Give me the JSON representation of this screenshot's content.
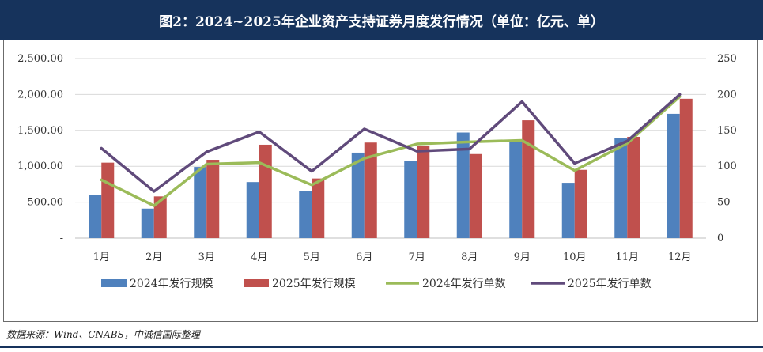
{
  "title": "图2：2024~2025年企业资产支持证券月度发行情况（单位：亿元、单）",
  "source": "数据来源：Wind、CNABS，中诚信国际整理",
  "colors": {
    "header_bg": "#16335c",
    "bar_2024": "#4f81bd",
    "bar_2025": "#c0504d",
    "line_2024": "#9bbb59",
    "line_2025": "#604a7b"
  },
  "chart_data": {
    "type": "bar+line",
    "categories": [
      "1月",
      "2月",
      "3月",
      "4月",
      "5月",
      "6月",
      "7月",
      "8月",
      "9月",
      "10月",
      "11月",
      "12月"
    ],
    "bar_series": [
      {
        "name": "2024年发行规模",
        "values": [
          600,
          410,
          990,
          780,
          660,
          1190,
          1070,
          1470,
          1350,
          770,
          1390,
          1730
        ]
      },
      {
        "name": "2025年发行规模",
        "values": [
          1050,
          580,
          1090,
          1300,
          830,
          1330,
          1280,
          1170,
          1640,
          950,
          1410,
          1940
        ]
      }
    ],
    "line_series": [
      {
        "name": "2024年发行单数",
        "values": [
          81,
          45,
          103,
          105,
          74,
          111,
          131,
          134,
          136,
          94,
          132,
          197
        ]
      },
      {
        "name": "2025年发行单数",
        "values": [
          125,
          65,
          120,
          148,
          93,
          152,
          121,
          124,
          190,
          104,
          135,
          200
        ]
      }
    ],
    "y_left": {
      "min": 0,
      "max": 2500,
      "ticks": [
        "-",
        "500.00",
        "1,000.00",
        "1,500.00",
        "2,000.00",
        "2,500.00"
      ]
    },
    "y_right": {
      "min": 0,
      "max": 250,
      "ticks": [
        "0",
        "50",
        "100",
        "150",
        "200",
        "250"
      ]
    },
    "legend_position": "bottom"
  }
}
